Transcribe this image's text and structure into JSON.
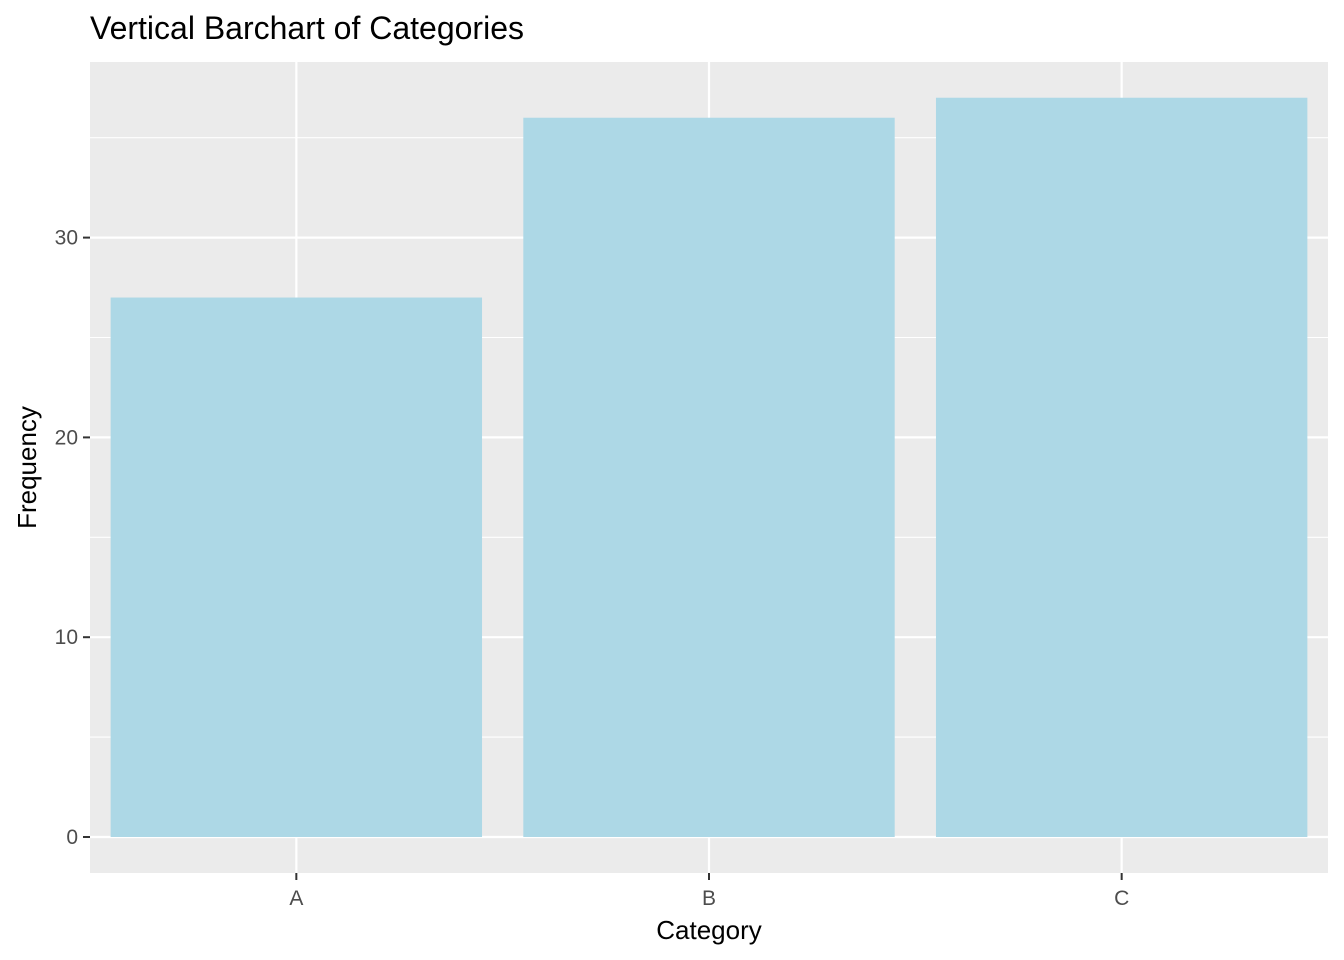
{
  "chart_data": {
    "type": "bar",
    "title": "Vertical Barchart of Categories",
    "xlabel": "Category",
    "ylabel": "Frequency",
    "categories": [
      "A",
      "B",
      "C"
    ],
    "values": [
      27,
      36,
      37
    ],
    "ylim": [
      0,
      37
    ],
    "yticks": [
      0,
      10,
      20,
      30
    ],
    "ytick_labels": [
      "0",
      "10",
      "20",
      "30"
    ],
    "grid": true,
    "bar_color": "#add8e6",
    "panel_background": "#ebebeb",
    "gridline_color": "#ffffff",
    "tick_color": "#333333"
  }
}
